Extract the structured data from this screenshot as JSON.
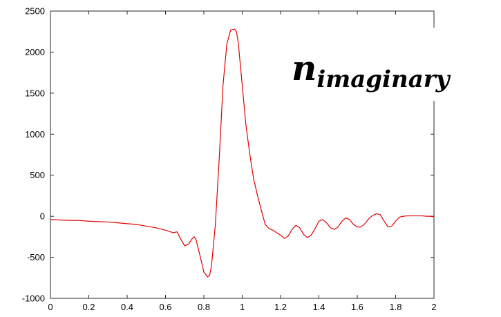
{
  "chart_data": {
    "type": "line",
    "title": "",
    "xlabel": "",
    "ylabel": "",
    "xlim": [
      0,
      2
    ],
    "ylim": [
      -1000,
      2500
    ],
    "x_ticks": [
      0,
      0.2,
      0.4,
      0.6,
      0.8,
      1,
      1.2,
      1.4,
      1.6,
      1.8,
      2
    ],
    "y_ticks": [
      -1000,
      -500,
      0,
      500,
      1000,
      1500,
      2000,
      2500
    ],
    "grid": false,
    "annotation": {
      "base": "n",
      "subscript": "imaginary"
    },
    "series": [
      {
        "color": "#e00000",
        "x": [
          0,
          0.05,
          0.1,
          0.15,
          0.2,
          0.25,
          0.3,
          0.35,
          0.4,
          0.45,
          0.5,
          0.55,
          0.6,
          0.64,
          0.66,
          0.68,
          0.7,
          0.72,
          0.74,
          0.75,
          0.76,
          0.78,
          0.8,
          0.82,
          0.83,
          0.84,
          0.86,
          0.88,
          0.9,
          0.92,
          0.94,
          0.96,
          0.97,
          0.98,
          1.0,
          1.02,
          1.04,
          1.06,
          1.08,
          1.1,
          1.12,
          1.14,
          1.16,
          1.18,
          1.2,
          1.22,
          1.24,
          1.25,
          1.26,
          1.28,
          1.3,
          1.32,
          1.34,
          1.36,
          1.38,
          1.4,
          1.42,
          1.44,
          1.46,
          1.48,
          1.5,
          1.52,
          1.54,
          1.56,
          1.58,
          1.6,
          1.62,
          1.64,
          1.66,
          1.68,
          1.7,
          1.72,
          1.74,
          1.76,
          1.78,
          1.8,
          1.82,
          1.84,
          1.86,
          1.88,
          1.9,
          1.92,
          1.94,
          1.96,
          1.98,
          2.0
        ],
        "y": [
          -40,
          -45,
          -50,
          -52,
          -60,
          -65,
          -70,
          -80,
          -90,
          -100,
          -120,
          -140,
          -170,
          -200,
          -190,
          -280,
          -360,
          -340,
          -270,
          -250,
          -290,
          -480,
          -680,
          -740,
          -720,
          -600,
          -100,
          700,
          1600,
          2100,
          2270,
          2280,
          2250,
          2100,
          1600,
          1100,
          750,
          450,
          250,
          70,
          -100,
          -150,
          -170,
          -200,
          -230,
          -270,
          -240,
          -200,
          -160,
          -110,
          -140,
          -220,
          -260,
          -230,
          -150,
          -60,
          -40,
          -80,
          -140,
          -160,
          -130,
          -60,
          -20,
          -40,
          -100,
          -130,
          -130,
          -90,
          -30,
          10,
          30,
          20,
          -60,
          -130,
          -120,
          -60,
          -10,
          0,
          5,
          5,
          5,
          5,
          5,
          0,
          0,
          -5
        ]
      }
    ]
  }
}
